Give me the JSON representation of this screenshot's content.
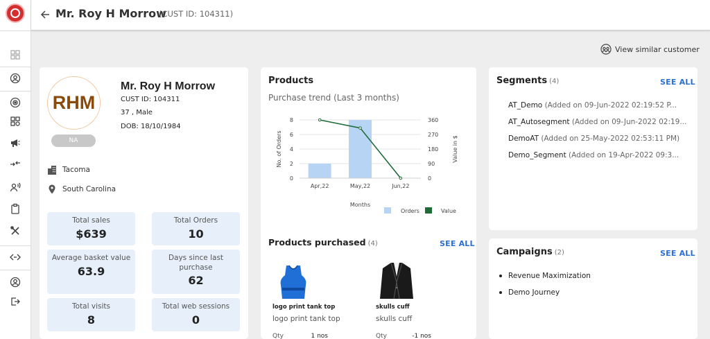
{
  "header": {
    "title": "Mr. Roy H Morrow",
    "subtitle": "(CUST ID: 104311)"
  },
  "actions": {
    "view_similar": "View similar customer"
  },
  "profile": {
    "initials": "RHM",
    "badge": "NA",
    "name": "Mr. Roy H Morrow",
    "cust_id": "CUST ID: 104311",
    "age_gender": "37 , Male",
    "dob": "DOB: 18/10/1984",
    "city": "Tacoma",
    "state": "South Carolina",
    "stats": [
      {
        "label": "Total sales",
        "value": "$639"
      },
      {
        "label": "Total Orders",
        "value": "10"
      },
      {
        "label": "Average basket value",
        "value": "63.9"
      },
      {
        "label": "Days since last purchase",
        "value": "62"
      },
      {
        "label": "Total visits",
        "value": "8"
      },
      {
        "label": "Total web sessions",
        "value": "0"
      }
    ]
  },
  "products": {
    "title": "Products",
    "trend_title": "Purchase trend (Last 3 months)",
    "purchased_title": "Products purchased",
    "purchased_count": "(4)",
    "see_all": "SEE ALL",
    "items": [
      {
        "name": "logo print tank top",
        "subtitle": "logo print tank top",
        "qty_label": "Qty",
        "qty": "1 nos",
        "icon": "tank-top"
      },
      {
        "name": "skulls cuff",
        "subtitle": "skulls cuff",
        "qty_label": "Qty",
        "qty": "-1 nos",
        "icon": "blazer"
      }
    ]
  },
  "chart_data": {
    "type": "bar",
    "categories": [
      "Apr,22",
      "May,22",
      "Jun,22"
    ],
    "series": [
      {
        "name": "Orders",
        "type": "bar",
        "axis": "left",
        "values": [
          2,
          8,
          0
        ],
        "color": "#b7d4f5"
      },
      {
        "name": "Value",
        "type": "line",
        "axis": "right",
        "values": [
          360,
          310,
          0
        ],
        "color": "#1e6b38"
      }
    ],
    "xlabel": "Months",
    "ylabel": "No. of Orders",
    "y2label": "Value in $",
    "ylim": [
      0,
      8
    ],
    "y2lim": [
      0,
      360
    ],
    "yticks": [
      0,
      2,
      4,
      6,
      8
    ],
    "y2ticks": [
      0,
      90,
      180,
      270,
      360
    ],
    "grid": true,
    "legend": "bottom-right"
  },
  "segments": {
    "title": "Segments",
    "count": "(4)",
    "see_all": "SEE ALL",
    "items": [
      {
        "name": "AT_Demo",
        "added": "(Added on 09-Jun-2022 02:19:52 P..."
      },
      {
        "name": "AT_Autosegment",
        "added": "(Added on 09-Jun-2022 02:19..."
      },
      {
        "name": "DemoAT",
        "added": "(Added on 25-May-2022 02:53:11 PM)"
      },
      {
        "name": "Demo_Segment",
        "added": "(Added on 19-Apr-2022 09:3..."
      }
    ]
  },
  "campaigns": {
    "title": "Campaigns",
    "count": "(2)",
    "see_all": "SEE ALL",
    "items": [
      "Revenue Maximization",
      "Demo Journey"
    ]
  }
}
